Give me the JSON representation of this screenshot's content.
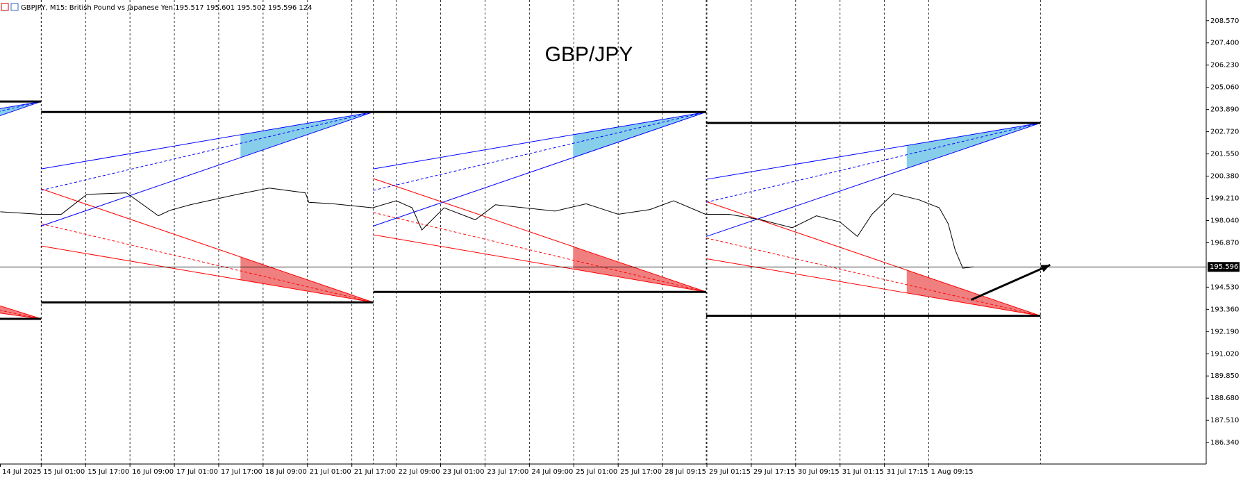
{
  "chart_data": {
    "type": "line",
    "header": "GBPJPY, M15:  British Pound vs Japanese Yen  195.517 195.601 195.502 195.596  124",
    "title": "GBP/JPY",
    "x": [
      5,
      62,
      93,
      130,
      187,
      233,
      250,
      279,
      347,
      393,
      445,
      450,
      485,
      542,
      576,
      599,
      613,
      645,
      690,
      719,
      805,
      850,
      896,
      942,
      976,
      1022,
      1056,
      1102,
      1147,
      1182,
      1216,
      1241,
      1262,
      1293,
      1330,
      1359,
      1372,
      1382,
      1393,
      1408
    ],
    "values": [
      198.5,
      198.37,
      198.37,
      199.42,
      199.5,
      198.29,
      198.58,
      198.87,
      199.42,
      199.75,
      199.5,
      199.0,
      198.92,
      198.71,
      199.08,
      198.71,
      197.54,
      198.71,
      198.08,
      198.87,
      198.54,
      198.92,
      198.37,
      198.62,
      199.08,
      198.37,
      198.37,
      198.08,
      197.66,
      198.29,
      197.96,
      197.2,
      198.37,
      199.46,
      199.13,
      198.71,
      197.87,
      196.49,
      195.53,
      195.6
    ],
    "color": "#000000",
    "last_price": 195.596,
    "xlim": [
      4.6,
      1744
    ],
    "ylim": [
      185.21,
      209.66
    ],
    "xticks": [
      {
        "value": 0,
        "label": "14 Jul 2025"
      },
      {
        "value": 64,
        "label": "15 Jul 01:00"
      },
      {
        "value": 128,
        "label": "15 Jul 17:00"
      },
      {
        "value": 192,
        "label": "16 Jul 09:00"
      },
      {
        "value": 256,
        "label": "17 Jul 01:00"
      },
      {
        "value": 320,
        "label": "17 Jul 17:00"
      },
      {
        "value": 384,
        "label": "18 Jul 09:00"
      },
      {
        "value": 448,
        "label": "21 Jul 01:00"
      },
      {
        "value": 512,
        "label": "21 Jul 17:00"
      },
      {
        "value": 576,
        "label": "22 Jul 09:00"
      },
      {
        "value": 640,
        "label": "23 Jul 01:00"
      },
      {
        "value": 704,
        "label": "23 Jul 17:00"
      },
      {
        "value": 768,
        "label": "24 Jul 09:00"
      },
      {
        "value": 832,
        "label": "25 Jul 01:00"
      },
      {
        "value": 896,
        "label": "25 Jul 17:00"
      },
      {
        "value": 960,
        "label": "28 Jul 09:15"
      },
      {
        "value": 1024,
        "label": "29 Jul 01:15"
      },
      {
        "value": 1088,
        "label": "29 Jul 17:15"
      },
      {
        "value": 1152,
        "label": "30 Jul 09:15"
      },
      {
        "value": 1216,
        "label": "31 Jul 01:15"
      },
      {
        "value": 1280,
        "label": "31 Jul 17:15"
      },
      {
        "value": 1344,
        "label": "1 Aug 09:15"
      }
    ],
    "yticks": [
      {
        "value": 208.57,
        "label": "208.570"
      },
      {
        "value": 207.4,
        "label": "207.400"
      },
      {
        "value": 206.23,
        "label": "206.230"
      },
      {
        "value": 205.06,
        "label": "205.060"
      },
      {
        "value": 203.89,
        "label": "203.890"
      },
      {
        "value": 202.72,
        "label": "202.720"
      },
      {
        "value": 201.55,
        "label": "201.550"
      },
      {
        "value": 200.38,
        "label": "200.380"
      },
      {
        "value": 199.21,
        "label": "199.210"
      },
      {
        "value": 198.04,
        "label": "198.040"
      },
      {
        "value": 196.87,
        "label": "196.870"
      },
      {
        "value": 194.53,
        "label": "194.530"
      },
      {
        "value": 193.36,
        "label": "193.360"
      },
      {
        "value": 192.19,
        "label": "192.190"
      },
      {
        "value": 191.02,
        "label": "191.020"
      },
      {
        "value": 189.85,
        "label": "189.850"
      },
      {
        "value": 188.68,
        "label": "188.680"
      },
      {
        "value": 187.51,
        "label": "187.510"
      },
      {
        "value": 186.34,
        "label": "186.340"
      }
    ],
    "grid": true,
    "weeks": [
      {
        "x": [
          -415,
          64
        ],
        "high": 204.31,
        "low": 192.86,
        "blue": [
          201.3,
          200.2,
          198.3
        ],
        "red": [
          198.4,
          196.5,
          195.3
        ]
      },
      {
        "x": [
          64,
          543
        ],
        "high": 203.76,
        "low": 193.73,
        "blue": [
          200.76,
          199.63,
          197.75
        ],
        "red": [
          199.71,
          197.87,
          196.7
        ]
      },
      {
        "x": [
          543,
          1023
        ],
        "high": 203.76,
        "low": 194.28,
        "blue": [
          200.76,
          199.63,
          197.75
        ],
        "red": [
          200.25,
          198.46,
          197.29
        ]
      },
      {
        "x": [
          1023,
          1505
        ],
        "high": 203.18,
        "low": 193.02,
        "blue": [
          200.21,
          199.0,
          197.2
        ],
        "red": [
          199.04,
          197.12,
          196.03
        ]
      }
    ],
    "arrow": {
      "x": [
        1405,
        1519
      ],
      "y": [
        193.86,
        195.7
      ]
    }
  }
}
